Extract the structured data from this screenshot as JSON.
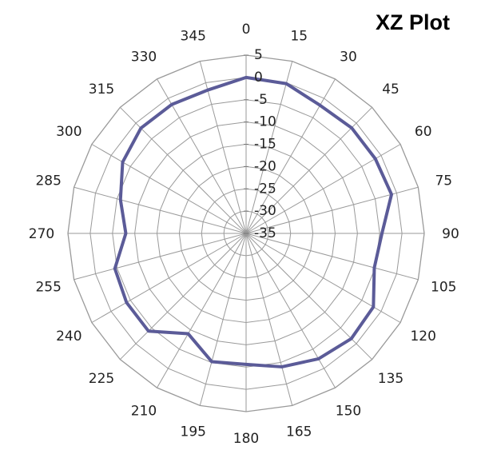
{
  "chart_data": {
    "type": "line",
    "subtype": "polar-radar",
    "title": "XZ Plot",
    "angle_ticks": [
      "0",
      "15",
      "30",
      "45",
      "60",
      "75",
      "90",
      "105",
      "120",
      "135",
      "150",
      "165",
      "180",
      "195",
      "210",
      "225",
      "240",
      "255",
      "270",
      "285",
      "300",
      "315",
      "330",
      "345"
    ],
    "radial_ticks": [
      "5",
      "0",
      "-5",
      "-10",
      "-15",
      "-20",
      "-25",
      "-30",
      "-35"
    ],
    "radial_range": [
      -35,
      5
    ],
    "grid": true,
    "legend": "none",
    "series": [
      {
        "angles": [
          0,
          15,
          30,
          45,
          60,
          75,
          90,
          105,
          120,
          135,
          150,
          165,
          180,
          195,
          210,
          225,
          240,
          255,
          270,
          285,
          300,
          315,
          330,
          345
        ],
        "values": [
          0,
          -0.2,
          -1.8,
          -1.5,
          -1.5,
          -1.2,
          -4.5,
          -5.2,
          -2,
          -1.6,
          -2.5,
          -4,
          -5.6,
          -5.2,
          -9,
          -4,
          -4,
          -4.5,
          -8,
          -5.8,
          -3,
          -1.6,
          -1.6,
          -1.7
        ],
        "color": "#5b5b98"
      }
    ]
  }
}
